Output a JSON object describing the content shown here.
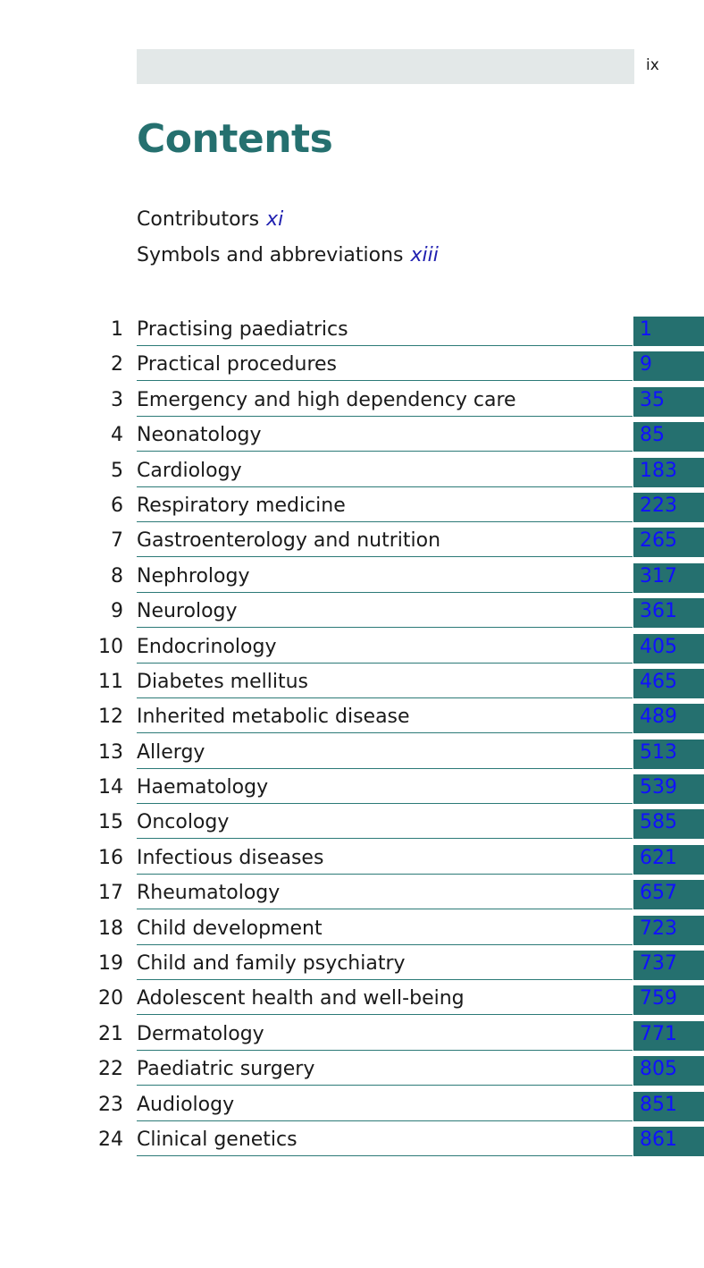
{
  "header": {
    "page_number": "ix"
  },
  "title": "Contents",
  "front_matter": [
    {
      "label": "Contributors",
      "page": "xi"
    },
    {
      "label": "Symbols and abbreviations",
      "page": "xiii"
    }
  ],
  "chapters": [
    {
      "number": "1",
      "title": "Practising paediatrics",
      "page": "1"
    },
    {
      "number": "2",
      "title": "Practical procedures",
      "page": "9"
    },
    {
      "number": "3",
      "title": "Emergency and high dependency care",
      "page": "35"
    },
    {
      "number": "4",
      "title": "Neonatology",
      "page": "85"
    },
    {
      "number": "5",
      "title": "Cardiology",
      "page": "183"
    },
    {
      "number": "6",
      "title": "Respiratory medicine",
      "page": "223"
    },
    {
      "number": "7",
      "title": "Gastroenterology and nutrition",
      "page": "265"
    },
    {
      "number": "8",
      "title": "Nephrology",
      "page": "317"
    },
    {
      "number": "9",
      "title": "Neurology",
      "page": "361"
    },
    {
      "number": "10",
      "title": "Endocrinology",
      "page": "405"
    },
    {
      "number": "11",
      "title": "Diabetes mellitus",
      "page": "465"
    },
    {
      "number": "12",
      "title": "Inherited metabolic disease",
      "page": "489"
    },
    {
      "number": "13",
      "title": "Allergy",
      "page": "513"
    },
    {
      "number": "14",
      "title": "Haematology",
      "page": "539"
    },
    {
      "number": "15",
      "title": "Oncology",
      "page": "585"
    },
    {
      "number": "16",
      "title": "Infectious diseases",
      "page": "621"
    },
    {
      "number": "17",
      "title": "Rheumatology",
      "page": "657"
    },
    {
      "number": "18",
      "title": "Child development",
      "page": "723"
    },
    {
      "number": "19",
      "title": "Child and family psychiatry",
      "page": "737"
    },
    {
      "number": "20",
      "title": "Adolescent health and well-being",
      "page": "759"
    },
    {
      "number": "21",
      "title": "Dermatology",
      "page": "771"
    },
    {
      "number": "22",
      "title": "Paediatric surgery",
      "page": "805"
    },
    {
      "number": "23",
      "title": "Audiology",
      "page": "851"
    },
    {
      "number": "24",
      "title": "Clinical genetics",
      "page": "861"
    }
  ],
  "colors": {
    "accent": "#25706f",
    "link": "#1010ff",
    "header_bar": "#e3e8e8"
  }
}
